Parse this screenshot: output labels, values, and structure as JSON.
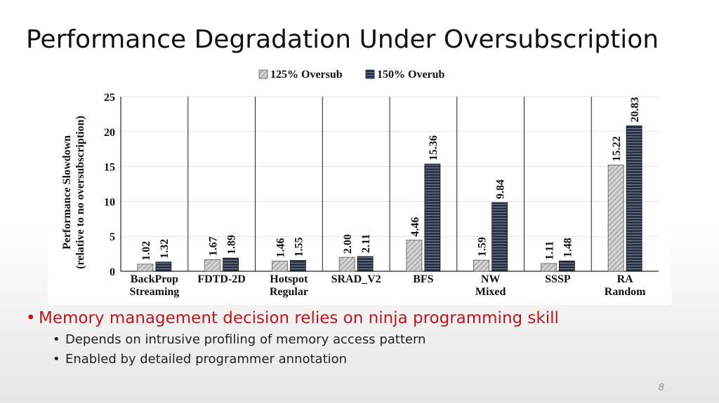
{
  "slide": {
    "title": "Performance Degradation Under Oversubscription",
    "page_number": "8"
  },
  "bullets": [
    {
      "level": 1,
      "text": "Memory management decision relies on ninja programming skill"
    },
    {
      "level": 2,
      "text": "Depends on intrusive profiling of memory access pattern"
    },
    {
      "level": 2,
      "text": "Enabled by detailed programmer annotation"
    }
  ],
  "colors": {
    "title": "#111111",
    "accent_bullet": "#c0161b",
    "series_125_fill": "#c8c8c8",
    "series_150_fill": "#2b3447"
  },
  "chart_data": {
    "type": "bar",
    "title": "",
    "ylabel": [
      "Performance Slowdown",
      "(relative to no oversubscription)"
    ],
    "xlabel": "",
    "ylim": [
      0,
      25
    ],
    "yticks": [
      0,
      5,
      10,
      15,
      20,
      25
    ],
    "grid": true,
    "legend_position": "top-center",
    "categories": [
      [
        "BackProp",
        "Streaming"
      ],
      [
        "FDTD-2D"
      ],
      [
        "Hotspot",
        "Regular"
      ],
      [
        "SRAD_V2"
      ],
      [
        "BFS"
      ],
      [
        "NW",
        "Mixed"
      ],
      [
        "SSSP"
      ],
      [
        "RA",
        "Random"
      ]
    ],
    "series": [
      {
        "name": "125% Oversub",
        "pattern": "diagonal-hatch",
        "color": "#c8c8c8",
        "values": [
          1.02,
          1.67,
          1.46,
          2.0,
          4.46,
          1.59,
          1.11,
          15.22
        ],
        "labels": [
          "1.02",
          "1.67",
          "1.46",
          "2.00",
          "4.46",
          "1.59",
          "1.11",
          "15.22"
        ]
      },
      {
        "name": "150% Overub",
        "pattern": "horizontal-stripes",
        "color": "#2b3447",
        "values": [
          1.32,
          1.89,
          1.55,
          2.11,
          15.36,
          9.84,
          1.48,
          20.83
        ],
        "labels": [
          "1.32",
          "1.89",
          "1.55",
          "2.11",
          "15.36",
          "9.84",
          "1.48",
          "20.83"
        ]
      }
    ]
  }
}
